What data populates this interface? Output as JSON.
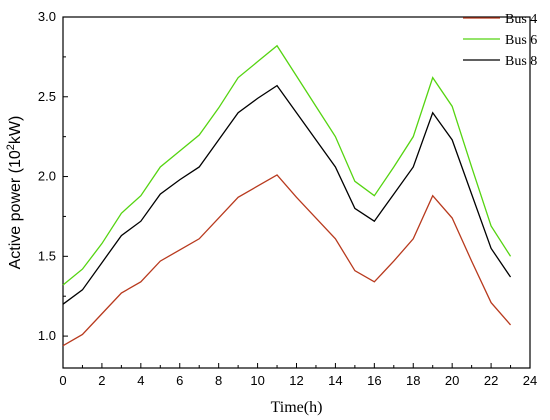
{
  "chart_data": {
    "type": "line",
    "xlabel": "Time(h)",
    "ylabel": {
      "prefix": "Active power (10",
      "sup": "2",
      "suffix": "kW)"
    },
    "xlim": [
      0,
      24
    ],
    "ylim": [
      0.8,
      3.0
    ],
    "x_ticks": [
      "0",
      "2",
      "4",
      "6",
      "8",
      "10",
      "12",
      "14",
      "16",
      "18",
      "20",
      "22",
      "24"
    ],
    "y_ticks": [
      "1.0",
      "1.5",
      "2.0",
      "2.5",
      "3.0"
    ],
    "x": [
      0,
      1,
      2,
      3,
      4,
      5,
      6,
      7,
      8,
      9,
      10,
      11,
      12,
      13,
      14,
      15,
      16,
      17,
      18,
      19,
      20,
      21,
      22,
      23
    ],
    "series": [
      {
        "name": "Bus 4",
        "color": "#b83a1e",
        "values": [
          0.94,
          1.01,
          1.14,
          1.27,
          1.34,
          1.47,
          1.54,
          1.61,
          1.74,
          1.87,
          1.94,
          2.01,
          1.87,
          1.74,
          1.61,
          1.41,
          1.34,
          1.47,
          1.61,
          1.88,
          1.74,
          1.47,
          1.21,
          1.07
        ]
      },
      {
        "name": "Bus 6",
        "color": "#55d411",
        "values": [
          1.32,
          1.42,
          1.58,
          1.77,
          1.88,
          2.06,
          2.16,
          2.26,
          2.43,
          2.62,
          2.72,
          2.82,
          2.63,
          2.44,
          2.25,
          1.97,
          1.88,
          2.06,
          2.25,
          2.62,
          2.44,
          2.06,
          1.69,
          1.5
        ]
      },
      {
        "name": "Bus 8",
        "color": "#000000",
        "values": [
          1.2,
          1.29,
          1.46,
          1.63,
          1.72,
          1.89,
          1.98,
          2.06,
          2.23,
          2.4,
          2.49,
          2.57,
          2.4,
          2.23,
          2.06,
          1.8,
          1.72,
          1.89,
          2.06,
          2.4,
          2.23,
          1.89,
          1.55,
          1.37
        ]
      }
    ],
    "grid": false,
    "legend_position": "top-right"
  }
}
